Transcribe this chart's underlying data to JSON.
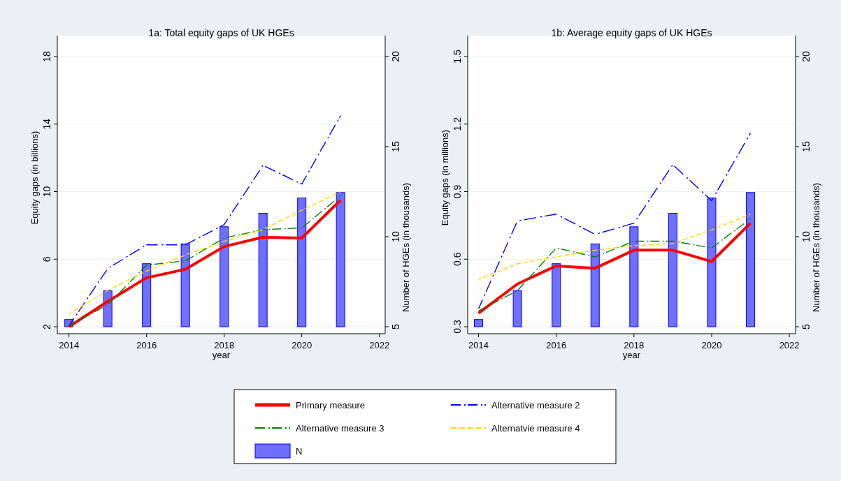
{
  "chart_data": [
    {
      "type": "line",
      "title": "1a: Total equity gaps of UK HGEs",
      "xlabel": "year",
      "ylabel": "Equity gaps (in billions)",
      "y2label": "Number of HGEs (in thousands)",
      "x": [
        2014,
        2015,
        2016,
        2017,
        2018,
        2019,
        2020,
        2021
      ],
      "xlim": [
        2013.7,
        2022.15
      ],
      "xticks": [
        2014,
        2016,
        2018,
        2020,
        2022
      ],
      "ylim": [
        2,
        18
      ],
      "yticks": [
        2,
        6,
        10,
        14,
        18
      ],
      "y2lim": [
        5,
        20
      ],
      "y2ticks": [
        5,
        10,
        15,
        20
      ],
      "grid": "y",
      "legend": "bottom",
      "series": [
        {
          "name": "Primary measure",
          "color": "#ff0000",
          "line_style": "solid",
          "values": [
            2.0,
            3.5,
            4.9,
            5.4,
            6.75,
            7.3,
            7.25,
            9.5
          ]
        },
        {
          "name": "Alternative measure 2",
          "color": "#0000ff",
          "line_style": "dashdot",
          "values": [
            2.05,
            5.45,
            6.85,
            6.85,
            8.05,
            11.55,
            10.45,
            14.5
          ]
        },
        {
          "name": "Alternative measure 3",
          "color": "#008000",
          "line_style": "dashdot",
          "values": [
            2.05,
            3.3,
            5.65,
            5.9,
            7.25,
            7.75,
            7.85,
            9.75
          ]
        },
        {
          "name": "Alternatvie measure 4",
          "color": "#ffd700",
          "line_style": "dashed",
          "values": [
            2.75,
            4.15,
            5.3,
            6.25,
            7.05,
            7.75,
            8.9,
            10.0
          ]
        },
        {
          "name": "N",
          "type": "bar",
          "axis": "y2",
          "color": "#7070ff",
          "values": [
            5.4,
            7.0,
            8.5,
            9.6,
            10.55,
            11.3,
            12.15,
            12.45
          ]
        }
      ]
    },
    {
      "type": "line",
      "title": "1b: Average equity gaps of UK HGEs",
      "xlabel": "year",
      "ylabel": "Equity gaps (in millions)",
      "y2label": "Number of HGEs (in thousands)",
      "x": [
        2014,
        2015,
        2016,
        2017,
        2018,
        2019,
        2020,
        2021
      ],
      "xlim": [
        2013.72,
        2022.16
      ],
      "xticks": [
        2014,
        2016,
        2018,
        2020,
        2022
      ],
      "ylim": [
        0.3,
        1.5
      ],
      "yticks": [
        0.3,
        0.6,
        0.9,
        1.2,
        1.5
      ],
      "y2lim": [
        5,
        20
      ],
      "y2ticks": [
        5,
        10,
        15,
        20
      ],
      "grid": "y",
      "series": [
        {
          "color": "#ff0000",
          "line_style": "solid",
          "values": [
            0.36,
            0.49,
            0.57,
            0.56,
            0.64,
            0.64,
            0.59,
            0.76
          ]
        },
        {
          "color": "#0000ff",
          "line_style": "dashdot",
          "values": [
            0.38,
            0.77,
            0.8,
            0.71,
            0.76,
            1.02,
            0.86,
            1.16
          ]
        },
        {
          "color": "#008000",
          "line_style": "dashdot",
          "values": [
            0.37,
            0.46,
            0.65,
            0.61,
            0.68,
            0.68,
            0.65,
            0.78
          ]
        },
        {
          "color": "#ffd700",
          "line_style": "dashed",
          "values": [
            0.51,
            0.58,
            0.61,
            0.64,
            0.66,
            0.67,
            0.73,
            0.8
          ]
        },
        {
          "type": "bar",
          "axis": "y2",
          "color": "#7070ff",
          "values": [
            5.4,
            7.0,
            8.5,
            9.6,
            10.55,
            11.3,
            12.15,
            12.45
          ]
        }
      ]
    }
  ]
}
